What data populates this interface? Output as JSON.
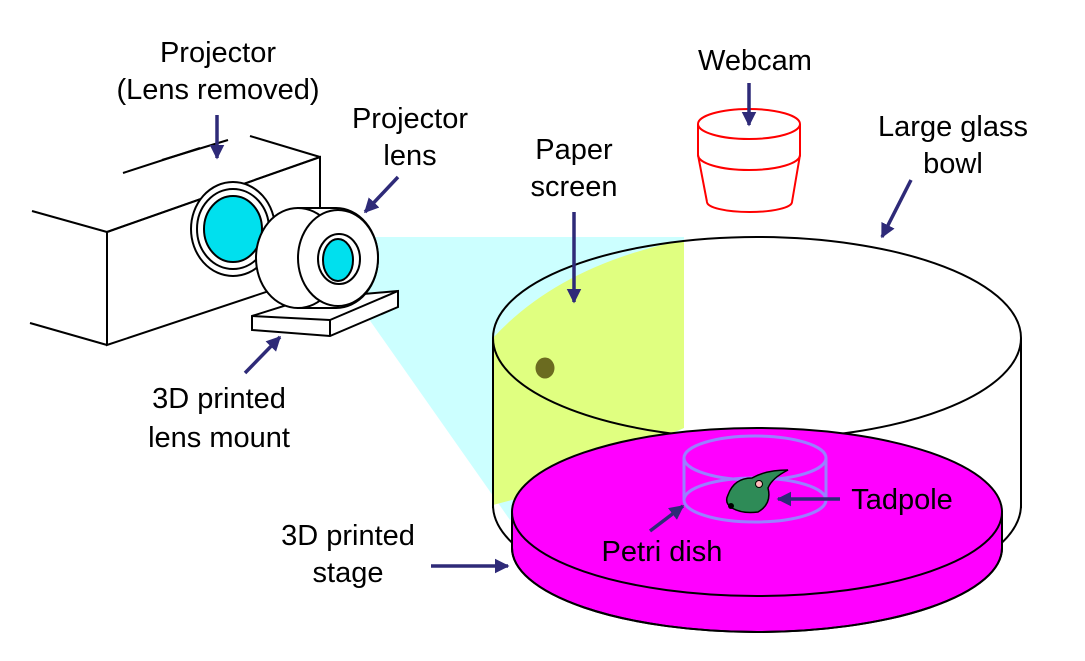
{
  "labels": {
    "projector_line1": "Projector",
    "projector_line2": "(Lens removed)",
    "projector_lens_line1": "Projector",
    "projector_lens_line2": "lens",
    "paper_screen_line1": "Paper",
    "paper_screen_line2": "screen",
    "webcam": "Webcam",
    "glass_bowl_line1": "Large glass",
    "glass_bowl_line2": "bowl",
    "lens_mount_line1": "3D printed",
    "lens_mount_line2": "lens mount",
    "stage_line1": "3D printed",
    "stage_line2": "stage",
    "tadpole": "Tadpole",
    "petri_dish": "Petri dish"
  },
  "colors": {
    "projection_beam": "#ccffff",
    "lens_glass": "#00e0ee",
    "paper_screen": "#e0ff80",
    "stage": "#ff00ff",
    "webcam": "#ff0000",
    "petri_dish": "#9a7fff",
    "tadpole_body": "#2e8b57",
    "tadpole_dot": "#6b6b20",
    "arrow": "#2e2a78",
    "outline": "#000000"
  }
}
